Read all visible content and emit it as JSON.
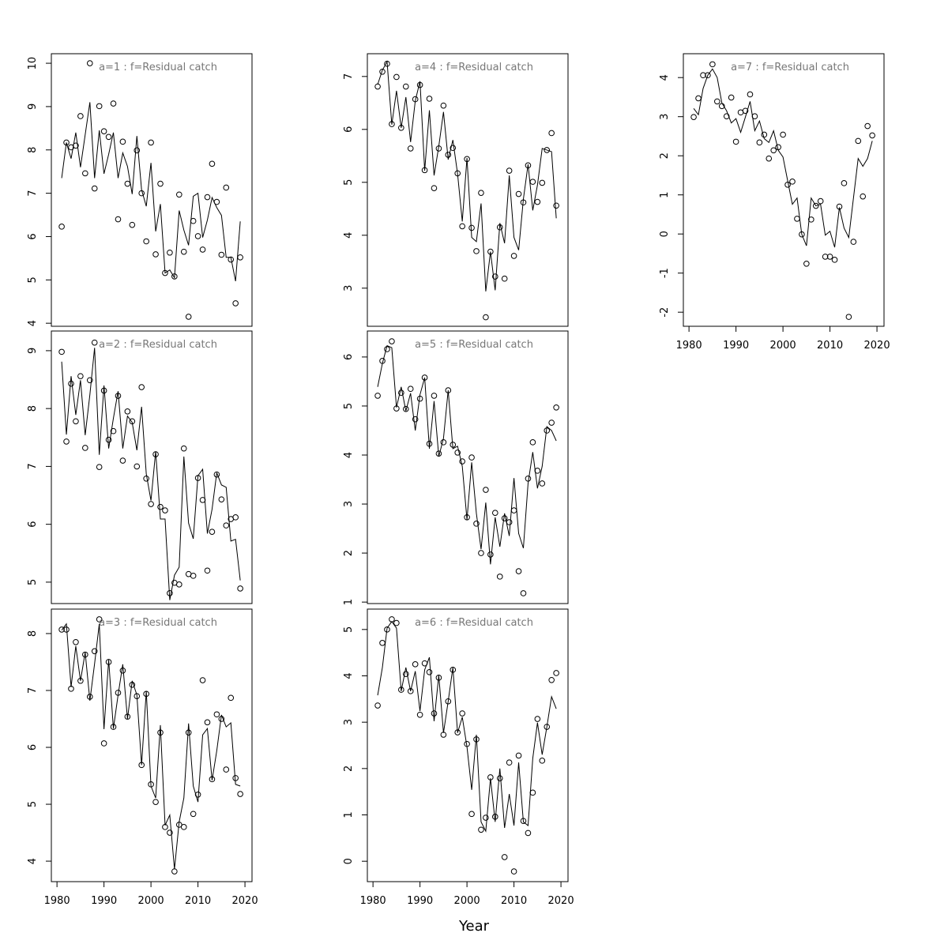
{
  "xlabel": "Year",
  "chart_data": [
    {
      "type": "line",
      "title": "a=1  :  f=Residual catch",
      "x": [
        1981,
        1982,
        1983,
        1984,
        1985,
        1986,
        1987,
        1988,
        1989,
        1990,
        1991,
        1992,
        1993,
        1994,
        1995,
        1996,
        1997,
        1998,
        1999,
        2000,
        2001,
        2002,
        2003,
        2004,
        2005,
        2006,
        2007,
        2008,
        2009,
        2010,
        2011,
        2012,
        2013,
        2014,
        2015,
        2016,
        2017,
        2018,
        2019
      ],
      "xlim": [
        1978.8,
        2021.5
      ],
      "ylim": [
        3.93,
        10.22
      ],
      "yticks": [
        4,
        5,
        6,
        7,
        8,
        9,
        10
      ],
      "series": [
        {
          "style": "points",
          "color": "#000000",
          "values": [
            6.23,
            8.17,
            8.06,
            8.1,
            8.78,
            7.46,
            10.0,
            7.11,
            9.01,
            8.43,
            8.3,
            9.07,
            6.4,
            8.19,
            7.22,
            6.27,
            7.99,
            7.0,
            5.89,
            8.17,
            5.59,
            7.22,
            5.16,
            5.63,
            5.08,
            6.97,
            5.65,
            4.15,
            6.36,
            6.01,
            5.7,
            6.91,
            7.68,
            6.8,
            5.58,
            7.13,
            5.47,
            4.46,
            5.52
          ]
        },
        {
          "style": "line",
          "color": "#000000",
          "values": [
            7.35,
            8.17,
            7.8,
            8.4,
            7.6,
            8.35,
            9.1,
            7.35,
            8.45,
            7.45,
            7.9,
            8.4,
            7.35,
            7.93,
            7.62,
            6.98,
            8.32,
            7.08,
            6.7,
            7.7,
            6.12,
            6.75,
            5.16,
            5.23,
            5.05,
            6.6,
            6.15,
            5.8,
            6.93,
            7.0,
            5.98,
            6.38,
            6.9,
            6.67,
            6.49,
            5.52,
            5.52,
            4.97,
            6.35
          ]
        }
      ]
    },
    {
      "type": "line",
      "title": "a=2  :  f=Residual catch",
      "x": [
        1981,
        1982,
        1983,
        1984,
        1985,
        1986,
        1987,
        1988,
        1989,
        1990,
        1991,
        1992,
        1993,
        1994,
        1995,
        1996,
        1997,
        1998,
        1999,
        2000,
        2001,
        2002,
        2003,
        2004,
        2005,
        2006,
        2007,
        2008,
        2009,
        2010,
        2011,
        2012,
        2013,
        2014,
        2015,
        2016,
        2017,
        2018,
        2019
      ],
      "xlim": [
        1978.8,
        2021.5
      ],
      "ylim": [
        4.63,
        9.34
      ],
      "yticks": [
        5,
        6,
        7,
        8,
        9
      ],
      "series": [
        {
          "style": "points",
          "color": "#000000",
          "values": [
            8.98,
            7.43,
            8.43,
            7.78,
            8.56,
            7.32,
            8.49,
            9.14,
            6.99,
            8.31,
            7.46,
            7.61,
            8.22,
            7.1,
            7.95,
            7.78,
            7.0,
            8.37,
            6.79,
            6.35,
            7.21,
            6.3,
            6.24,
            4.81,
            4.99,
            4.96,
            7.31,
            5.14,
            5.11,
            6.8,
            6.42,
            5.2,
            5.87,
            6.86,
            6.43,
            5.98,
            6.09,
            6.12,
            4.89
          ]
        },
        {
          "style": "line",
          "color": "#000000",
          "values": [
            8.81,
            7.55,
            8.56,
            7.89,
            8.49,
            7.54,
            8.24,
            9.05,
            7.2,
            8.4,
            7.31,
            7.83,
            8.3,
            7.31,
            7.87,
            7.76,
            7.28,
            8.03,
            6.87,
            6.41,
            7.26,
            6.09,
            6.09,
            4.69,
            5.12,
            5.26,
            7.17,
            6.02,
            5.75,
            6.84,
            6.95,
            5.84,
            6.26,
            6.89,
            6.68,
            6.64,
            5.71,
            5.74,
            5.03
          ]
        }
      ]
    },
    {
      "type": "line",
      "title": "a=3  :  f=Residual catch",
      "x": [
        1981,
        1982,
        1983,
        1984,
        1985,
        1986,
        1987,
        1988,
        1989,
        1990,
        1991,
        1992,
        1993,
        1994,
        1995,
        1996,
        1997,
        1998,
        1999,
        2000,
        2001,
        2002,
        2003,
        2004,
        2005,
        2006,
        2007,
        2008,
        2009,
        2010,
        2011,
        2012,
        2013,
        2014,
        2015,
        2016,
        2017,
        2018,
        2019
      ],
      "xlim": [
        1978.8,
        2021.5
      ],
      "xticks": [
        1980,
        1990,
        2000,
        2010,
        2020
      ],
      "ylim": [
        3.64,
        8.43
      ],
      "yticks": [
        4,
        5,
        6,
        7,
        8
      ],
      "series": [
        {
          "style": "points",
          "color": "#000000",
          "values": [
            8.07,
            8.07,
            7.03,
            7.85,
            7.17,
            7.63,
            6.89,
            7.69,
            8.25,
            6.07,
            7.5,
            6.36,
            6.96,
            7.35,
            6.54,
            7.1,
            6.9,
            5.69,
            6.94,
            5.35,
            5.04,
            6.26,
            4.6,
            4.5,
            3.82,
            4.64,
            4.6,
            6.26,
            4.83,
            5.17,
            7.18,
            6.44,
            5.44,
            6.58,
            6.5,
            5.61,
            6.87,
            5.46,
            5.18
          ]
        },
        {
          "style": "line",
          "color": "#000000",
          "values": [
            8.06,
            8.17,
            7.06,
            7.78,
            7.17,
            7.67,
            6.82,
            7.47,
            8.17,
            6.32,
            7.54,
            6.33,
            6.92,
            7.46,
            6.5,
            7.17,
            6.92,
            5.69,
            6.99,
            5.32,
            5.11,
            6.39,
            4.63,
            4.81,
            3.86,
            4.69,
            5.11,
            6.42,
            5.32,
            5.04,
            6.22,
            6.33,
            5.42,
            5.94,
            6.57,
            6.36,
            6.43,
            5.35,
            5.32
          ]
        }
      ]
    },
    {
      "type": "line",
      "title": "a=4  :  f=Residual catch",
      "x": [
        1981,
        1982,
        1983,
        1984,
        1985,
        1986,
        1987,
        1988,
        1989,
        1990,
        1991,
        1992,
        1993,
        1994,
        1995,
        1996,
        1997,
        1998,
        1999,
        2000,
        2001,
        2002,
        2003,
        2004,
        2005,
        2006,
        2007,
        2008,
        2009,
        2010,
        2011,
        2012,
        2013,
        2014,
        2015,
        2016,
        2017,
        2018,
        2019
      ],
      "xlim": [
        1978.8,
        2021.5
      ],
      "ylim": [
        2.28,
        7.43
      ],
      "yticks": [
        3,
        4,
        5,
        6,
        7
      ],
      "series": [
        {
          "style": "points",
          "color": "#000000",
          "values": [
            6.81,
            7.09,
            7.24,
            6.1,
            6.99,
            6.03,
            6.81,
            5.64,
            6.57,
            6.84,
            5.23,
            6.58,
            4.89,
            5.64,
            6.45,
            5.52,
            5.65,
            5.17,
            4.17,
            5.44,
            4.14,
            3.7,
            4.8,
            2.45,
            3.69,
            3.22,
            4.15,
            3.18,
            5.22,
            3.61,
            4.78,
            4.62,
            5.32,
            5.01,
            4.63,
            4.99,
            5.61,
            5.93,
            4.56
          ]
        },
        {
          "style": "line",
          "color": "#000000",
          "values": [
            6.85,
            7.12,
            7.28,
            6.09,
            6.73,
            6.03,
            6.61,
            5.76,
            6.54,
            6.91,
            5.22,
            6.36,
            5.13,
            5.68,
            6.33,
            5.43,
            5.8,
            5.16,
            4.26,
            5.46,
            3.96,
            3.88,
            4.6,
            2.94,
            3.69,
            2.96,
            4.23,
            3.85,
            5.13,
            3.96,
            3.72,
            4.68,
            5.34,
            4.47,
            4.95,
            5.64,
            5.61,
            5.58,
            4.32
          ]
        }
      ]
    },
    {
      "type": "line",
      "title": "a=5  :  f=Residual catch",
      "x": [
        1981,
        1982,
        1983,
        1984,
        1985,
        1986,
        1987,
        1988,
        1989,
        1990,
        1991,
        1992,
        1993,
        1994,
        1995,
        1996,
        1997,
        1998,
        1999,
        2000,
        2001,
        2002,
        2003,
        2004,
        2005,
        2006,
        2007,
        2008,
        2009,
        2010,
        2011,
        2012,
        2013,
        2014,
        2015,
        2016,
        2017,
        2018,
        2019
      ],
      "xlim": [
        1978.8,
        2021.5
      ],
      "ylim": [
        0.97,
        6.53
      ],
      "yticks": [
        1,
        2,
        3,
        4,
        5,
        6
      ],
      "series": [
        {
          "style": "points",
          "color": "#000000",
          "values": [
            5.21,
            5.92,
            6.16,
            6.32,
            4.95,
            5.27,
            4.94,
            5.35,
            4.73,
            5.15,
            5.58,
            4.23,
            5.21,
            4.03,
            4.26,
            5.32,
            4.21,
            4.05,
            3.87,
            2.73,
            3.95,
            2.6,
            2.0,
            3.29,
            1.97,
            2.82,
            1.52,
            2.71,
            2.63,
            2.87,
            1.63,
            1.18,
            3.52,
            4.26,
            3.68,
            3.42,
            4.5,
            4.66,
            4.97
          ]
        },
        {
          "style": "line",
          "color": "#000000",
          "values": [
            5.39,
            5.87,
            6.23,
            6.19,
            4.97,
            5.39,
            4.9,
            5.26,
            4.5,
            5.23,
            5.58,
            4.13,
            5.1,
            3.97,
            4.34,
            5.32,
            4.13,
            4.18,
            3.77,
            2.68,
            3.85,
            2.81,
            2.08,
            3.03,
            1.77,
            2.73,
            2.13,
            2.81,
            2.35,
            3.53,
            2.4,
            2.1,
            3.42,
            4.06,
            3.32,
            3.77,
            4.58,
            4.5,
            4.29
          ]
        }
      ]
    },
    {
      "type": "line",
      "title": "a=6  :  f=Residual catch",
      "x": [
        1981,
        1982,
        1983,
        1984,
        1985,
        1986,
        1987,
        1988,
        1989,
        1990,
        1991,
        1992,
        1993,
        1994,
        1995,
        1996,
        1997,
        1998,
        1999,
        2000,
        2001,
        2002,
        2003,
        2004,
        2005,
        2006,
        2007,
        2008,
        2009,
        2010,
        2011,
        2012,
        2013,
        2014,
        2015,
        2016,
        2017,
        2018,
        2019
      ],
      "xlim": [
        1978.8,
        2021.5
      ],
      "xticks": [
        1980,
        1990,
        2000,
        2010,
        2020
      ],
      "ylim": [
        -0.44,
        5.44
      ],
      "yticks": [
        0,
        1,
        2,
        3,
        4,
        5
      ],
      "series": [
        {
          "style": "points",
          "color": "#000000",
          "values": [
            3.36,
            4.71,
            5.0,
            5.22,
            5.14,
            3.7,
            4.04,
            3.67,
            4.25,
            3.16,
            4.27,
            4.08,
            3.19,
            3.96,
            2.73,
            3.45,
            4.13,
            2.78,
            3.19,
            2.53,
            1.02,
            2.63,
            0.68,
            0.94,
            1.81,
            0.96,
            1.79,
            0.09,
            2.13,
            -0.22,
            2.28,
            0.87,
            0.61,
            1.48,
            3.07,
            2.17,
            2.9,
            3.91,
            4.06
          ]
        },
        {
          "style": "line",
          "color": "#000000",
          "values": [
            3.58,
            4.18,
            5.03,
            5.17,
            5.03,
            3.67,
            4.18,
            3.67,
            4.1,
            3.24,
            4.13,
            4.4,
            3.02,
            4.01,
            2.77,
            3.45,
            4.18,
            2.77,
            3.11,
            2.47,
            1.54,
            2.73,
            0.85,
            0.65,
            1.79,
            0.85,
            2.0,
            0.72,
            1.45,
            0.77,
            2.13,
            0.85,
            0.77,
            2.22,
            2.99,
            2.3,
            2.9,
            3.55,
            3.29
          ]
        }
      ]
    },
    {
      "type": "line",
      "title": "a=7  :  f=Residual catch",
      "x": [
        1981,
        1982,
        1983,
        1984,
        1985,
        1986,
        1987,
        1988,
        1989,
        1990,
        1991,
        1992,
        1993,
        1994,
        1995,
        1996,
        1997,
        1998,
        1999,
        2000,
        2001,
        2002,
        2003,
        2004,
        2005,
        2006,
        2007,
        2008,
        2009,
        2010,
        2011,
        2012,
        2013,
        2014,
        2015,
        2016,
        2017,
        2018,
        2019
      ],
      "xlim": [
        1978.8,
        2021.5
      ],
      "xticks": [
        1980,
        1990,
        2000,
        2010,
        2020
      ],
      "ylim": [
        -2.36,
        4.61
      ],
      "yticks": [
        -2,
        -1,
        0,
        1,
        2,
        3,
        4
      ],
      "series": [
        {
          "style": "points",
          "color": "#000000",
          "values": [
            2.99,
            3.47,
            4.06,
            4.06,
            4.34,
            3.39,
            3.27,
            3.01,
            3.49,
            2.36,
            3.11,
            3.15,
            3.57,
            3.01,
            2.34,
            2.54,
            1.93,
            2.14,
            2.22,
            2.54,
            1.26,
            1.34,
            0.39,
            -0.01,
            -0.76,
            0.37,
            0.72,
            0.84,
            -0.58,
            -0.58,
            -0.66,
            0.7,
            1.3,
            -2.12,
            -0.2,
            2.38,
            0.96,
            2.76,
            2.52
          ]
        },
        {
          "style": "line",
          "color": "#000000",
          "values": [
            3.21,
            3.05,
            3.72,
            4.06,
            4.22,
            4.0,
            3.35,
            3.15,
            2.84,
            2.95,
            2.6,
            2.99,
            3.39,
            2.64,
            2.89,
            2.44,
            2.34,
            2.64,
            2.14,
            1.97,
            1.36,
            0.76,
            0.92,
            -0.01,
            -0.3,
            0.92,
            0.72,
            0.76,
            -0.03,
            0.07,
            -0.34,
            0.68,
            0.15,
            -0.09,
            0.92,
            1.93,
            1.73,
            1.93,
            2.38
          ]
        }
      ]
    }
  ]
}
